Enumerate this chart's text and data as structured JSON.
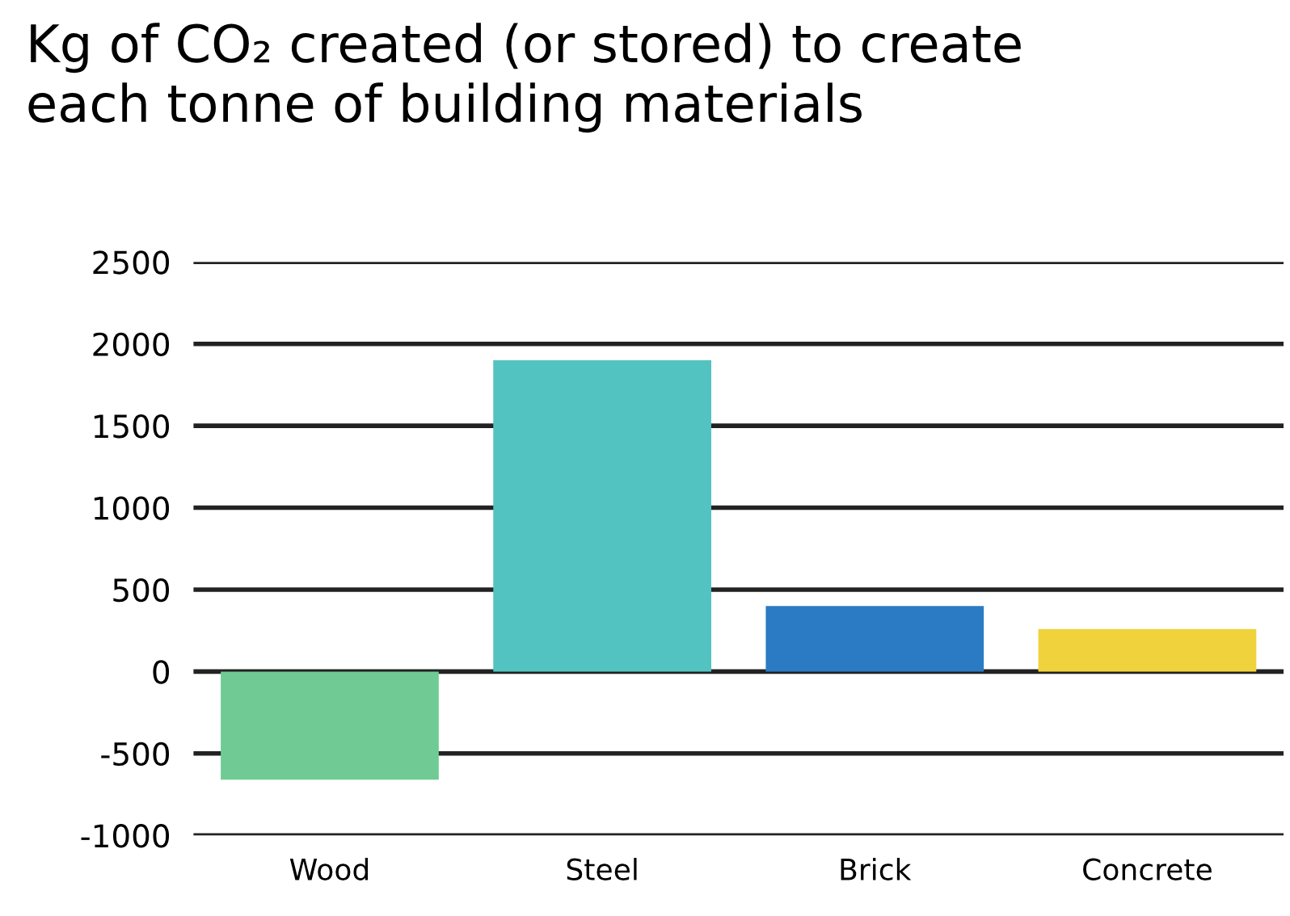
{
  "chart_data": {
    "type": "bar",
    "title": "Kg of CO₂ created (or stored) to create\neach tonne of building materials",
    "categories": [
      "Wood",
      "Steel",
      "Brick",
      "Concrete"
    ],
    "values": [
      -660,
      1900,
      400,
      260
    ],
    "colors": [
      "#6fcb93",
      "#52c3c0",
      "#2a7bc4",
      "#f0d23c"
    ],
    "ylim": [
      -1000,
      2500
    ],
    "yticks": [
      -1000,
      -500,
      0,
      500,
      1000,
      1500,
      2000,
      2500
    ],
    "grid": "y"
  }
}
